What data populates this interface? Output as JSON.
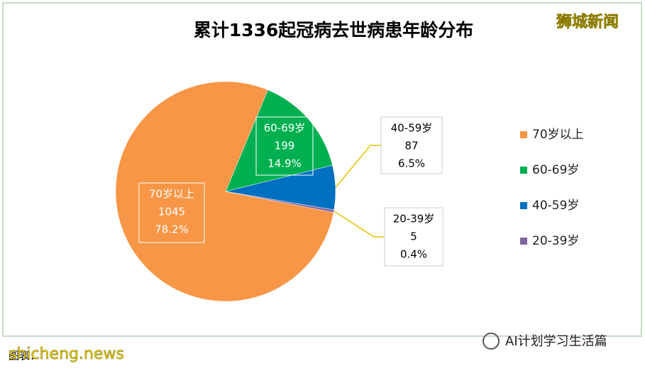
{
  "chart_data": {
    "type": "pie",
    "title": "累计1336起冠病去世病患年龄分布",
    "categories": [
      "70岁以上",
      "60-69岁",
      "40-59岁",
      "20-39岁"
    ],
    "values": [
      1045,
      199,
      87,
      5
    ],
    "percents": [
      78.2,
      14.9,
      6.5,
      0.4
    ],
    "percent_labels": [
      "78.2%",
      "14.9%",
      "6.5%",
      "0.4%"
    ],
    "colors": [
      "#f79646",
      "#00b050",
      "#0070c0",
      "#8064a2"
    ],
    "legend": "right"
  },
  "watermarks": {
    "top_right": "狮城新闻",
    "bottom_left": "shicheng.news",
    "source": "图表：",
    "bottom_right": "AI计划学习生活篇"
  }
}
